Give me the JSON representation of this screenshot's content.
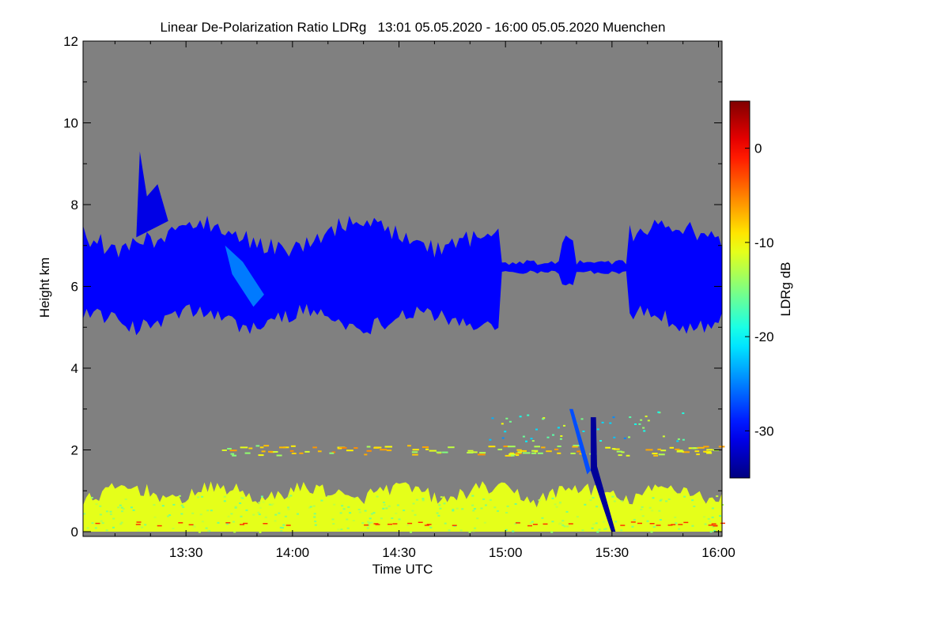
{
  "chart_data": {
    "type": "heatmap",
    "title": "Linear De-Polarization Ratio LDRg   13:01 05.05.2020 - 16:00 05.05.2020 Muenchen",
    "xlabel": "Time UTC",
    "ylabel": "Height km",
    "xlim_minutes_utc": [
      781,
      961
    ],
    "ylim_km": [
      0,
      12
    ],
    "x_ticks": [
      {
        "label": "13:30",
        "minutes": 810
      },
      {
        "label": "14:00",
        "minutes": 840
      },
      {
        "label": "14:30",
        "minutes": 870
      },
      {
        "label": "15:00",
        "minutes": 900
      },
      {
        "label": "15:30",
        "minutes": 930
      },
      {
        "label": "16:00",
        "minutes": 960
      }
    ],
    "y_ticks": [
      {
        "label": "0",
        "value": 0
      },
      {
        "label": "2",
        "value": 2
      },
      {
        "label": "4",
        "value": 4
      },
      {
        "label": "6",
        "value": 6
      },
      {
        "label": "8",
        "value": 8
      },
      {
        "label": "10",
        "value": 10
      },
      {
        "label": "12",
        "value": 12
      }
    ],
    "colorbar": {
      "label": "LDRg dB",
      "range_db": [
        -35,
        5
      ],
      "ticks": [
        {
          "label": "0",
          "value": 0
        },
        {
          "label": "-10",
          "value": -10
        },
        {
          "label": "-20",
          "value": -20
        },
        {
          "label": "-30",
          "value": -30
        }
      ]
    },
    "background_color": "#808080",
    "features": [
      {
        "name": "cirrus layer",
        "time_start_min": 781,
        "time_end_min": 961,
        "height_bottom_km_approx": 5.0,
        "height_top_km_approx": 7.5,
        "ldr_db_approx": -30
      },
      {
        "name": "boundary layer",
        "time_start_min": 781,
        "time_end_min": 961,
        "height_bottom_km_approx": 0.0,
        "height_top_km_approx": 1.0,
        "ldr_db_approx": -11
      },
      {
        "name": "intermittent layer near 2 km",
        "time_start_min": 820,
        "time_end_min": 961,
        "height_km_approx": 2.0,
        "ldr_db_approx": -5
      },
      {
        "name": "fall streak",
        "time_start_min": 924,
        "time_end_min": 931,
        "height_bottom_km_approx": 0.0,
        "height_top_km_approx": 2.8,
        "ldr_db_approx": -34
      }
    ]
  }
}
